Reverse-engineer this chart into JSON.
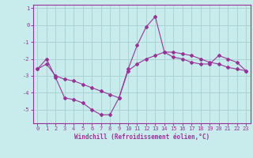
{
  "xlabel": "Windchill (Refroidissement éolien,°C)",
  "bg_color": "#c8ecec",
  "grid_color": "#aad4d4",
  "line_color": "#993399",
  "ylim": [
    -5.8,
    1.2
  ],
  "xlim": [
    -0.5,
    23.5
  ],
  "yticks": [
    1,
    0,
    -1,
    -2,
    -3,
    -4,
    -5
  ],
  "xticks": [
    0,
    1,
    2,
    3,
    4,
    5,
    6,
    7,
    8,
    9,
    10,
    11,
    12,
    13,
    14,
    15,
    16,
    17,
    18,
    19,
    20,
    21,
    22,
    23
  ],
  "line1_x": [
    0,
    1,
    2,
    3,
    4,
    5,
    6,
    7,
    8,
    9,
    10,
    11,
    12,
    13,
    14,
    15,
    16,
    17,
    18,
    19,
    20,
    21,
    22,
    23
  ],
  "line1_y": [
    -2.6,
    -2.0,
    -3.1,
    -4.3,
    -4.4,
    -4.6,
    -5.0,
    -5.3,
    -5.3,
    -4.3,
    -2.6,
    -1.2,
    -0.1,
    0.5,
    -1.6,
    -1.9,
    -2.0,
    -2.2,
    -2.3,
    -2.3,
    -1.8,
    -2.0,
    -2.2,
    -2.7
  ],
  "line2_x": [
    0,
    1,
    2,
    3,
    4,
    5,
    6,
    7,
    8,
    9,
    10,
    11,
    12,
    13,
    14,
    15,
    16,
    17,
    18,
    19,
    20,
    21,
    22,
    23
  ],
  "line2_y": [
    -2.6,
    -2.3,
    -3.0,
    -3.2,
    -3.3,
    -3.5,
    -3.7,
    -3.9,
    -4.1,
    -4.3,
    -2.7,
    -2.3,
    -2.0,
    -1.8,
    -1.6,
    -1.6,
    -1.7,
    -1.8,
    -2.0,
    -2.2,
    -2.3,
    -2.5,
    -2.6,
    -2.7
  ]
}
